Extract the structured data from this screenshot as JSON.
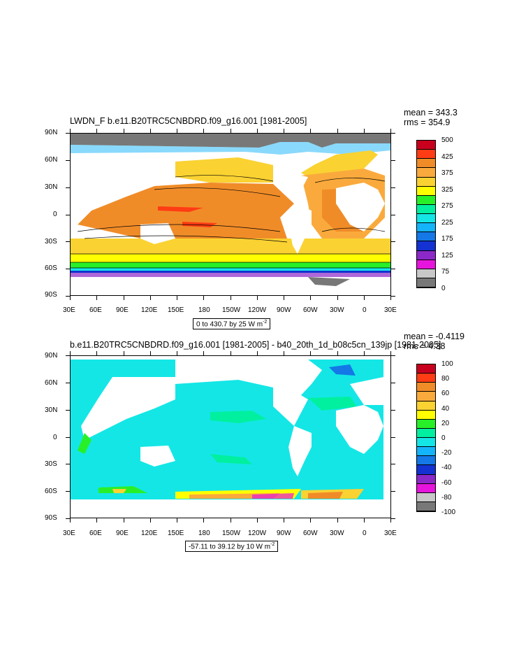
{
  "panels": [
    {
      "title": "LWDN_F  b.e11.B20TRC5CNBDRD.f09_g16.001 [1981-2005]",
      "mean": "mean = 343.3",
      "rms": "rms = 354.9",
      "caption_text": "0 to 430.7 by 25  W m",
      "caption_exp": "-2",
      "lat_labels": [
        "90N",
        "60N",
        "30N",
        "0",
        "30S",
        "60S",
        "90S"
      ],
      "lon_labels": [
        "30E",
        "60E",
        "90E",
        "120E",
        "150E",
        "180",
        "150W",
        "120W",
        "90W",
        "60W",
        "30W",
        "0",
        "30E"
      ],
      "colorbar": {
        "labels": [
          "500",
          "425",
          "375",
          "325",
          "275",
          "225",
          "175",
          "125",
          "75",
          "0"
        ],
        "colors": [
          "#c8001e",
          "#ff3c14",
          "#f08c28",
          "#faaa3c",
          "#fad232",
          "#ffff00",
          "#28f028",
          "#00f0a0",
          "#14e6e6",
          "#14b4fa",
          "#1478e6",
          "#1432d2",
          "#8c28c8",
          "#e614dc",
          "#c8c8c8",
          "#787878"
        ]
      }
    },
    {
      "title": "b.e11.B20TRC5CNBDRD.f09_g16.001 [1981-2005] - b40_20th_1d_b08c5cn_139jp [1981-2005]",
      "mean": "mean = -0.4119",
      "rms": "rms = 4.38",
      "caption_text": "-57.11 to 39.12 by 10  W m",
      "caption_exp": "-2",
      "lat_labels": [
        "90N",
        "60N",
        "30N",
        "0",
        "30S",
        "60S",
        "90S"
      ],
      "lon_labels": [
        "30E",
        "60E",
        "90E",
        "120E",
        "150E",
        "180",
        "150W",
        "120W",
        "90W",
        "60W",
        "30W",
        "0",
        "30E"
      ],
      "colorbar": {
        "labels": [
          "100",
          "80",
          "60",
          "40",
          "20",
          "0",
          "-20",
          "-40",
          "-60",
          "-80",
          "-100"
        ],
        "colors": [
          "#c8001e",
          "#ff3c14",
          "#f08c28",
          "#faaa3c",
          "#fad232",
          "#ffff00",
          "#28f028",
          "#00f0a0",
          "#14e6e6",
          "#14b4fa",
          "#1478e6",
          "#1432d2",
          "#8c28c8",
          "#e614dc",
          "#c8c8c8",
          "#787878"
        ]
      }
    }
  ]
}
